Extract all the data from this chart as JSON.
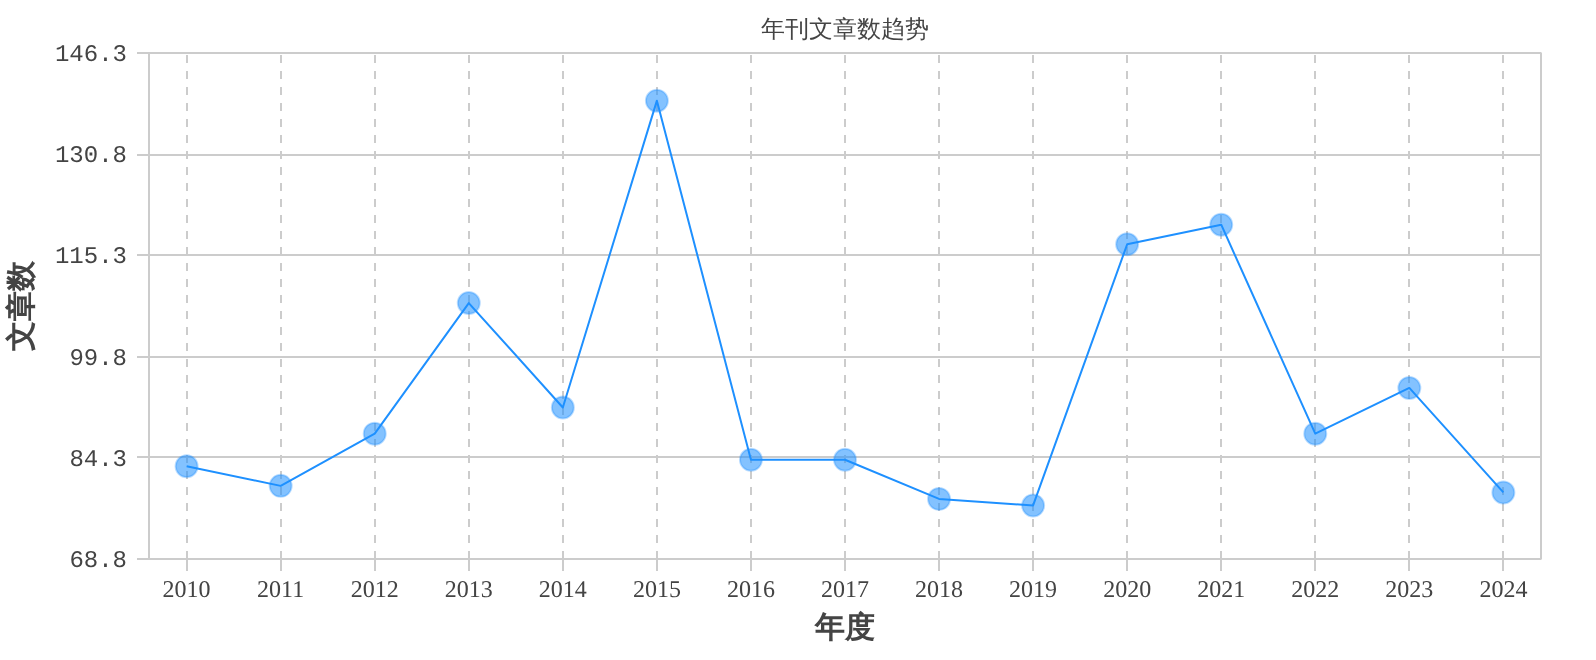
{
  "chart_data": {
    "type": "line",
    "title": "年刊文章数趋势",
    "xlabel": "年度",
    "ylabel": "文章数",
    "categories": [
      "2010",
      "2011",
      "2012",
      "2013",
      "2014",
      "2015",
      "2016",
      "2017",
      "2018",
      "2019",
      "2020",
      "2021",
      "2022",
      "2023",
      "2024"
    ],
    "series": [
      {
        "color": "#1e90ff",
        "values": [
          83,
          80,
          88,
          108,
          92,
          139,
          84,
          84,
          78,
          77,
          117,
          120,
          88,
          95,
          79
        ]
      }
    ],
    "ylim": [
      68.8,
      146.3
    ],
    "yticks": [
      68.8,
      84.3,
      99.8,
      115.3,
      130.8,
      146.3
    ],
    "grid": true,
    "marker": "circle",
    "line_style": "solid"
  }
}
